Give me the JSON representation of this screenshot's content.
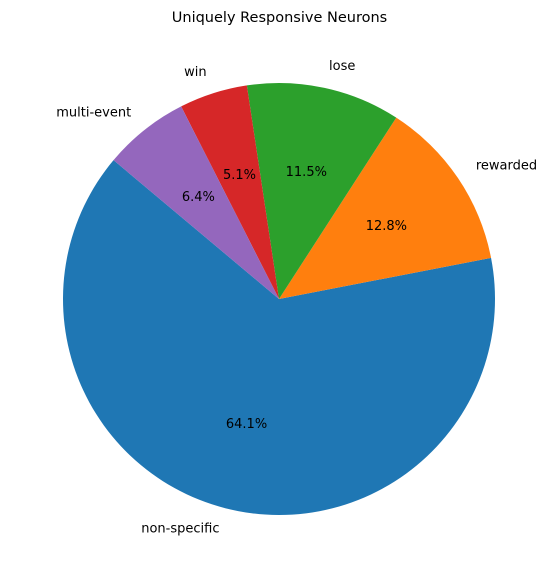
{
  "chart_data": {
    "type": "pie",
    "title": "Uniquely Responsive Neurons",
    "slices": [
      {
        "label": "non-specific",
        "value": 64.1,
        "pct_label": "64.1%",
        "color": "#1f77b4"
      },
      {
        "label": "rewarded",
        "value": 12.8,
        "pct_label": "12.8%",
        "color": "#ff7f0e"
      },
      {
        "label": "lose",
        "value": 11.5,
        "pct_label": "11.5%",
        "color": "#2ca02c"
      },
      {
        "label": "win",
        "value": 5.1,
        "pct_label": "5.1%",
        "color": "#d62728"
      },
      {
        "label": "multi-event",
        "value": 6.4,
        "pct_label": "6.4%",
        "color": "#9467bd"
      }
    ],
    "start_angle_deg": 140,
    "direction": "counterclockwise",
    "legend": "none"
  }
}
